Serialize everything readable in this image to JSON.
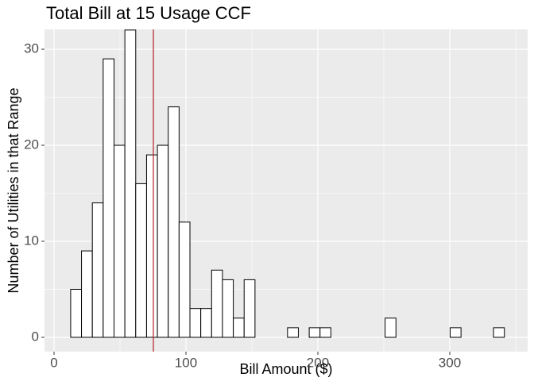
{
  "chart_data": {
    "type": "histogram",
    "title": "Total Bill at 15 Usage CCF",
    "x_label": "Bill Amount ($)",
    "y_label": "Number of Utilities in that Range",
    "bins": [
      12.6,
      20.82,
      29.04,
      37.26,
      45.48,
      53.7,
      61.92,
      70.14,
      78.36,
      86.58,
      94.8,
      103.02,
      111.24,
      119.46,
      127.68,
      135.9,
      144.12,
      152.34,
      160.56,
      168.78,
      177,
      185.22,
      193.44,
      201.66,
      209.88,
      218.1,
      226.32,
      234.54,
      242.76,
      250.98,
      259.2,
      267.42,
      275.64,
      283.86,
      292.08,
      300.3,
      308.52,
      316.74,
      324.96,
      333.18,
      341.4
    ],
    "values": [
      5,
      9,
      14,
      29,
      20,
      32,
      16,
      19,
      20,
      24,
      12,
      3,
      3,
      7,
      6,
      2,
      6,
      0,
      0,
      0,
      1,
      0,
      1,
      1,
      0,
      0,
      0,
      0,
      0,
      2,
      0,
      0,
      0,
      0,
      0,
      1,
      0,
      0,
      0,
      1
    ],
    "color": "#ffffff",
    "edge_color": "#000000",
    "vline": 75.3,
    "vline_color": "#b22222",
    "xlim": [
      -7.23,
      359.04
    ],
    "ylim": [
      -1.49,
      32.07
    ],
    "xticks": [
      0,
      100,
      200,
      300
    ],
    "yticks": [
      0,
      10,
      20,
      30
    ],
    "x_minor_grid": [
      50,
      150,
      250,
      350
    ],
    "y_minor_grid": [
      5,
      15,
      25
    ],
    "grid": true
  }
}
